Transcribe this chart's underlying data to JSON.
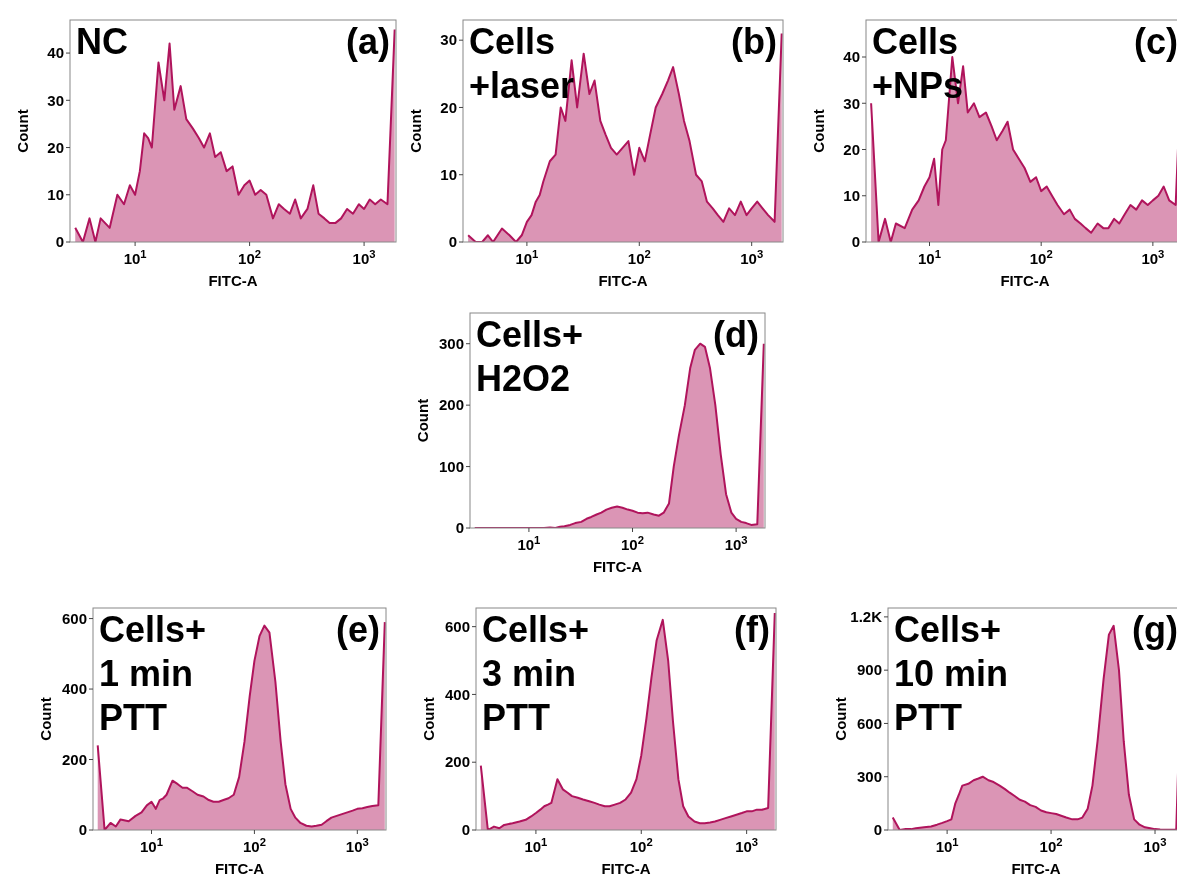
{
  "chart_data": [
    {
      "type": "area",
      "title": "NC",
      "annotations": [
        "(a)"
      ],
      "xlabel": "FITC-A",
      "ylabel": "Count",
      "log": "x",
      "xlim": [
        2.7,
        1900
      ],
      "xticks": [
        {
          "value": 10,
          "label": "10$^{1}$"
        },
        {
          "value": 100,
          "label": "10$^{2}$"
        },
        {
          "value": 1000,
          "label": "10$^{3}$"
        }
      ],
      "ylim": [
        0,
        47
      ],
      "yticks": [
        0,
        10,
        20,
        30,
        40
      ],
      "x": [
        3,
        3.5,
        4,
        4.5,
        5,
        6,
        7,
        8,
        9,
        10,
        11,
        12,
        13,
        14,
        16,
        18,
        20,
        22,
        25,
        28,
        32,
        36,
        40,
        45,
        50,
        56,
        63,
        71,
        80,
        90,
        100,
        112,
        125,
        140,
        160,
        180,
        200,
        225,
        250,
        280,
        320,
        360,
        400,
        450,
        500,
        560,
        630,
        710,
        800,
        900,
        1000,
        1120,
        1250,
        1400,
        1600,
        1850
      ],
      "series": [
        {
          "color": "#b0145c",
          "values": [
            3,
            0,
            5,
            0,
            5,
            3,
            10,
            8,
            12,
            10,
            15,
            23,
            22,
            20,
            38,
            30,
            42,
            28,
            33,
            26,
            24,
            22,
            20,
            23,
            18,
            19,
            15,
            16,
            10,
            12,
            13,
            10,
            11,
            10,
            5,
            8,
            7,
            6,
            9,
            5,
            7,
            12,
            6,
            5,
            4,
            4,
            5,
            7,
            6,
            8,
            7,
            9,
            8,
            9,
            8,
            45
          ]
        }
      ]
    },
    {
      "type": "area",
      "title": "Cells\n+laser",
      "annotations": [
        "(b)"
      ],
      "xlabel": "FITC-A",
      "ylabel": "Count",
      "log": "x",
      "xlim": [
        2.7,
        1900
      ],
      "xticks": [
        {
          "value": 10,
          "label": "10$^{1}$"
        },
        {
          "value": 100,
          "label": "10$^{2}$"
        },
        {
          "value": 1000,
          "label": "10$^{3}$"
        }
      ],
      "ylim": [
        0,
        33
      ],
      "yticks": [
        0,
        10,
        20,
        30
      ],
      "x": [
        3,
        3.5,
        4,
        4.5,
        5,
        6,
        7,
        8,
        9,
        10,
        11,
        12,
        13,
        14,
        16,
        18,
        20,
        22,
        25,
        28,
        32,
        36,
        40,
        45,
        50,
        56,
        63,
        71,
        80,
        90,
        100,
        112,
        125,
        140,
        160,
        180,
        200,
        225,
        250,
        280,
        320,
        360,
        400,
        450,
        500,
        560,
        630,
        710,
        800,
        900,
        1000,
        1120,
        1250,
        1400,
        1600,
        1850
      ],
      "series": [
        {
          "color": "#b0145c",
          "values": [
            1,
            0,
            0,
            1,
            0,
            2,
            1,
            0,
            1,
            3,
            4,
            6,
            7,
            9,
            12,
            13,
            20,
            18,
            27,
            20,
            28,
            22,
            24,
            18,
            16,
            14,
            13,
            14,
            15,
            10,
            14,
            12,
            16,
            20,
            22,
            24,
            26,
            22,
            18,
            15,
            10,
            9,
            6,
            5,
            4,
            3,
            5,
            4,
            6,
            4,
            5,
            6,
            5,
            4,
            3,
            31
          ]
        }
      ]
    },
    {
      "type": "area",
      "title": "Cells\n+NPs",
      "annotations": [
        "(c)"
      ],
      "xlabel": "FITC-A",
      "ylabel": "Count",
      "log": "x",
      "xlim": [
        2.7,
        1900
      ],
      "xticks": [
        {
          "value": 10,
          "label": "10$^{1}$"
        },
        {
          "value": 100,
          "label": "10$^{2}$"
        },
        {
          "value": 1000,
          "label": "10$^{3}$"
        }
      ],
      "ylim": [
        0,
        48
      ],
      "yticks": [
        0,
        10,
        20,
        30,
        40
      ],
      "x": [
        3,
        3.5,
        4,
        4.5,
        5,
        6,
        7,
        8,
        9,
        10,
        11,
        12,
        13,
        14,
        16,
        18,
        20,
        22,
        25,
        28,
        32,
        36,
        40,
        45,
        50,
        56,
        63,
        71,
        80,
        90,
        100,
        112,
        125,
        140,
        160,
        180,
        200,
        225,
        250,
        280,
        320,
        360,
        400,
        450,
        500,
        560,
        630,
        710,
        800,
        900,
        1000,
        1120,
        1250,
        1400,
        1600,
        1850
      ],
      "series": [
        {
          "color": "#b0145c",
          "values": [
            30,
            0,
            5,
            0,
            4,
            3,
            7,
            9,
            12,
            14,
            18,
            8,
            20,
            22,
            40,
            30,
            38,
            28,
            30,
            27,
            28,
            25,
            22,
            24,
            26,
            20,
            18,
            16,
            13,
            14,
            11,
            12,
            10,
            8,
            6,
            7,
            5,
            4,
            3,
            2,
            4,
            3,
            3,
            5,
            4,
            6,
            8,
            7,
            9,
            8,
            9,
            10,
            12,
            9,
            8,
            45
          ]
        }
      ]
    },
    {
      "type": "area",
      "title": "Cells+\nH2O2",
      "annotations": [
        "(d)"
      ],
      "xlabel": "FITC-A",
      "ylabel": "Count",
      "log": "x",
      "xlim": [
        2.7,
        1900
      ],
      "xticks": [
        {
          "value": 10,
          "label": "10$^{1}$"
        },
        {
          "value": 100,
          "label": "10$^{2}$"
        },
        {
          "value": 1000,
          "label": "10$^{3}$"
        }
      ],
      "ylim": [
        0,
        350
      ],
      "yticks": [
        0,
        100,
        200,
        300
      ],
      "x": [
        3,
        3.5,
        4,
        4.5,
        5,
        6,
        7,
        8,
        9,
        10,
        11,
        12,
        13,
        14,
        16,
        18,
        20,
        22,
        25,
        28,
        32,
        36,
        40,
        45,
        50,
        56,
        63,
        71,
        80,
        90,
        100,
        112,
        125,
        140,
        160,
        180,
        200,
        225,
        250,
        280,
        320,
        360,
        400,
        450,
        500,
        560,
        630,
        710,
        800,
        900,
        1000,
        1120,
        1250,
        1400,
        1600,
        1850
      ],
      "series": [
        {
          "color": "#b0145c",
          "values": [
            0,
            0,
            0,
            0,
            0,
            0,
            0,
            0,
            0,
            0,
            0,
            0,
            0,
            0,
            1,
            0,
            2,
            3,
            5,
            8,
            10,
            15,
            18,
            22,
            25,
            30,
            33,
            35,
            33,
            30,
            28,
            25,
            24,
            25,
            22,
            20,
            25,
            40,
            100,
            150,
            200,
            260,
            290,
            300,
            295,
            260,
            200,
            120,
            55,
            25,
            15,
            10,
            8,
            5,
            6,
            300
          ]
        }
      ]
    },
    {
      "type": "area",
      "title": "Cells+\n1 min\nPTT",
      "annotations": [
        "(e)"
      ],
      "xlabel": "FITC-A",
      "ylabel": "Count",
      "log": "x",
      "xlim": [
        2.7,
        1900
      ],
      "xticks": [
        {
          "value": 10,
          "label": "10$^{1}$"
        },
        {
          "value": 100,
          "label": "10$^{2}$"
        },
        {
          "value": 1000,
          "label": "10$^{3}$"
        }
      ],
      "ylim": [
        0,
        630
      ],
      "yticks": [
        0,
        200,
        400,
        600
      ],
      "x": [
        3,
        3.5,
        4,
        4.5,
        5,
        6,
        7,
        8,
        9,
        10,
        11,
        12,
        13,
        14,
        16,
        18,
        20,
        22,
        25,
        28,
        32,
        36,
        40,
        45,
        50,
        56,
        63,
        71,
        80,
        90,
        100,
        112,
        125,
        140,
        160,
        180,
        200,
        225,
        250,
        280,
        320,
        360,
        400,
        450,
        500,
        560,
        630,
        710,
        800,
        900,
        1000,
        1120,
        1250,
        1400,
        1600,
        1850
      ],
      "series": [
        {
          "color": "#b0145c",
          "values": [
            240,
            0,
            20,
            10,
            30,
            25,
            40,
            50,
            70,
            80,
            60,
            85,
            90,
            100,
            140,
            130,
            120,
            120,
            110,
            100,
            95,
            85,
            80,
            80,
            85,
            90,
            100,
            150,
            250,
            380,
            480,
            550,
            580,
            560,
            420,
            250,
            130,
            60,
            35,
            20,
            12,
            10,
            12,
            15,
            25,
            35,
            40,
            45,
            50,
            55,
            60,
            62,
            65,
            68,
            70,
            590
          ]
        }
      ]
    },
    {
      "type": "area",
      "title": "Cells+\n3 min\nPTT",
      "annotations": [
        "(f)"
      ],
      "xlabel": "FITC-A",
      "ylabel": "Count",
      "log": "x",
      "xlim": [
        2.7,
        1900
      ],
      "xticks": [
        {
          "value": 10,
          "label": "10$^{1}$"
        },
        {
          "value": 100,
          "label": "10$^{2}$"
        },
        {
          "value": 1000,
          "label": "10$^{3}$"
        }
      ],
      "ylim": [
        0,
        655
      ],
      "yticks": [
        0,
        200,
        400,
        600
      ],
      "x": [
        3,
        3.5,
        4,
        4.5,
        5,
        6,
        7,
        8,
        9,
        10,
        11,
        12,
        13,
        14,
        16,
        18,
        20,
        22,
        25,
        28,
        32,
        36,
        40,
        45,
        50,
        56,
        63,
        71,
        80,
        90,
        100,
        112,
        125,
        140,
        160,
        180,
        200,
        225,
        250,
        280,
        320,
        360,
        400,
        450,
        500,
        560,
        630,
        710,
        800,
        900,
        1000,
        1120,
        1250,
        1400,
        1600,
        1850
      ],
      "series": [
        {
          "color": "#b0145c",
          "values": [
            190,
            0,
            10,
            5,
            15,
            20,
            25,
            30,
            40,
            50,
            60,
            70,
            75,
            80,
            150,
            120,
            110,
            100,
            95,
            90,
            85,
            80,
            75,
            70,
            70,
            75,
            80,
            90,
            110,
            150,
            220,
            330,
            450,
            560,
            620,
            500,
            320,
            150,
            70,
            40,
            25,
            20,
            20,
            22,
            25,
            30,
            35,
            40,
            45,
            50,
            55,
            55,
            60,
            60,
            65,
            640
          ]
        }
      ]
    },
    {
      "type": "area",
      "title": "Cells+\n10 min\nPTT",
      "annotations": [
        "(g)"
      ],
      "xlabel": "FITC-A",
      "ylabel": "Count",
      "log": "x",
      "xlim": [
        2.7,
        1900
      ],
      "xticks": [
        {
          "value": 10,
          "label": "10$^{1}$"
        },
        {
          "value": 100,
          "label": "10$^{2}$"
        },
        {
          "value": 1000,
          "label": "10$^{3}$"
        }
      ],
      "ylim": [
        0,
        1250
      ],
      "yticks": [
        0,
        300,
        600,
        900,
        {
          "value": 1200,
          "label": "1.2K"
        }
      ],
      "x": [
        3,
        3.5,
        4,
        4.5,
        5,
        6,
        7,
        8,
        9,
        10,
        11,
        12,
        13,
        14,
        16,
        18,
        20,
        22,
        25,
        28,
        32,
        36,
        40,
        45,
        50,
        56,
        63,
        71,
        80,
        90,
        100,
        112,
        125,
        140,
        160,
        180,
        200,
        225,
        250,
        280,
        320,
        360,
        400,
        450,
        500,
        560,
        630,
        710,
        800,
        900,
        1000,
        1120,
        1250,
        1400,
        1600,
        1850
      ],
      "series": [
        {
          "color": "#b0145c",
          "values": [
            70,
            0,
            5,
            5,
            10,
            15,
            20,
            30,
            40,
            50,
            60,
            150,
            200,
            250,
            260,
            280,
            290,
            300,
            280,
            270,
            250,
            230,
            210,
            190,
            170,
            160,
            140,
            130,
            110,
            100,
            95,
            90,
            80,
            70,
            60,
            60,
            70,
            120,
            250,
            500,
            850,
            1100,
            1150,
            900,
            500,
            200,
            60,
            30,
            15,
            10,
            5,
            3,
            2,
            2,
            1,
            1200
          ]
        }
      ]
    }
  ]
}
